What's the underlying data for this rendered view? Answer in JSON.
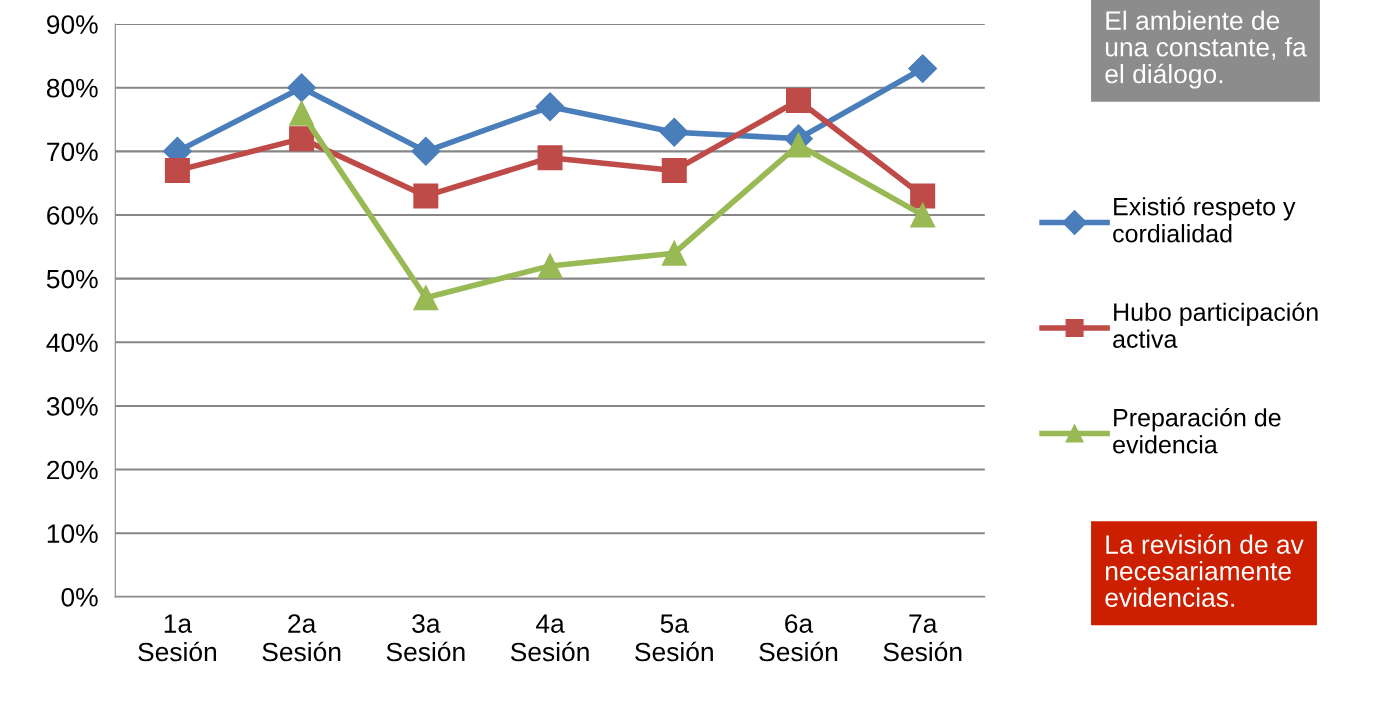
{
  "chart_data": {
    "type": "line",
    "categories": [
      "1a\nSesión",
      "2a\nSesión",
      "3a\nSesión",
      "4a\nSesión",
      "5a\nSesión",
      "6a\nSesión",
      "7a\nSesión"
    ],
    "series": [
      {
        "name": "Existió respeto y\ncordialidad",
        "color": "#4a7ebb",
        "marker": "diamond",
        "values": [
          70,
          80,
          70,
          77,
          73,
          72,
          83
        ]
      },
      {
        "name": "Hubo participación\nactiva",
        "color": "#be4b48",
        "marker": "square",
        "values": [
          67,
          72,
          63,
          69,
          67,
          78,
          63
        ]
      },
      {
        "name": "Preparación de\nevidencia",
        "color": "#98b954",
        "marker": "triangle",
        "values": [
          null,
          76,
          47,
          52,
          54,
          71,
          60
        ]
      }
    ],
    "ylim": [
      0,
      90
    ],
    "yticks": [
      {
        "value": 0,
        "label": "0%"
      },
      {
        "value": 10,
        "label": "10%"
      },
      {
        "value": 20,
        "label": "20%"
      },
      {
        "value": 30,
        "label": "30%"
      },
      {
        "value": 40,
        "label": "40%"
      },
      {
        "value": 50,
        "label": "50%"
      },
      {
        "value": 60,
        "label": "60%"
      },
      {
        "value": 70,
        "label": "70%"
      },
      {
        "value": 80,
        "label": "80%"
      },
      {
        "value": 90,
        "label": "90%"
      }
    ],
    "grid": "y",
    "legend": "right",
    "line_style": "solid",
    "annotations": [
      "El ambiente de\nuna constante, fa\nel diálogo.",
      "La revisión de av\nnecesariamente\nevidencias."
    ]
  }
}
